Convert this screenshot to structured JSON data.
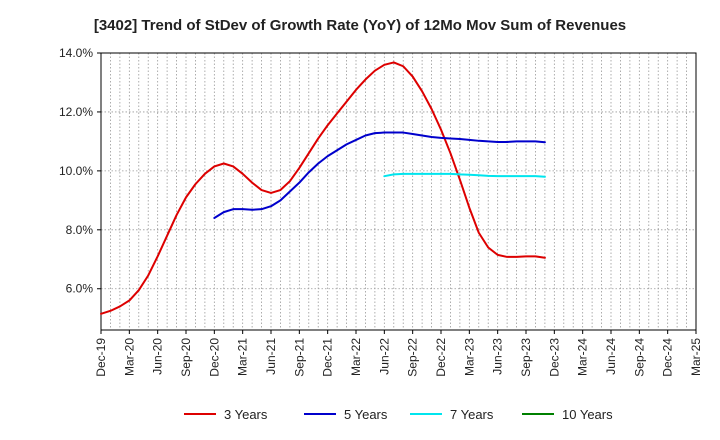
{
  "chart_data": {
    "type": "line",
    "title": "[3402]  Trend of StDev of Growth Rate (YoY) of 12Mo Mov Sum of Revenues",
    "xlabel": "",
    "ylabel": "",
    "x_ticks": [
      "Dec-19",
      "Mar-20",
      "Jun-20",
      "Sep-20",
      "Dec-20",
      "Mar-21",
      "Jun-21",
      "Sep-21",
      "Dec-21",
      "Mar-22",
      "Jun-22",
      "Sep-22",
      "Dec-22",
      "Mar-23",
      "Jun-23",
      "Sep-23",
      "Dec-23",
      "Mar-24",
      "Jun-24",
      "Sep-24",
      "Dec-24",
      "Mar-25"
    ],
    "y_ticks": [
      "6.0%",
      "8.0%",
      "10.0%",
      "12.0%",
      "14.0%"
    ],
    "y_tick_values": [
      6,
      8,
      10,
      12,
      14
    ],
    "ylim": [
      4.6,
      14.0
    ],
    "grid": true,
    "legend_position": "bottom",
    "series": [
      {
        "name": "3 Years",
        "color": "#dd0000",
        "points": [
          [
            0,
            5.15
          ],
          [
            1,
            5.25
          ],
          [
            2,
            5.4
          ],
          [
            3,
            5.6
          ],
          [
            4,
            5.95
          ],
          [
            5,
            6.45
          ],
          [
            6,
            7.1
          ],
          [
            7,
            7.8
          ],
          [
            8,
            8.5
          ],
          [
            9,
            9.1
          ],
          [
            10,
            9.55
          ],
          [
            11,
            9.9
          ],
          [
            12,
            10.15
          ],
          [
            13,
            10.25
          ],
          [
            14,
            10.15
          ],
          [
            15,
            9.9
          ],
          [
            16,
            9.6
          ],
          [
            17,
            9.35
          ],
          [
            18,
            9.25
          ],
          [
            19,
            9.35
          ],
          [
            20,
            9.65
          ],
          [
            21,
            10.1
          ],
          [
            22,
            10.6
          ],
          [
            23,
            11.1
          ],
          [
            24,
            11.55
          ],
          [
            25,
            11.95
          ],
          [
            26,
            12.35
          ],
          [
            27,
            12.75
          ],
          [
            28,
            13.1
          ],
          [
            29,
            13.4
          ],
          [
            30,
            13.6
          ],
          [
            31,
            13.68
          ],
          [
            32,
            13.55
          ],
          [
            33,
            13.2
          ],
          [
            34,
            12.7
          ],
          [
            35,
            12.1
          ],
          [
            36,
            11.4
          ],
          [
            37,
            10.6
          ],
          [
            38,
            9.7
          ],
          [
            39,
            8.75
          ],
          [
            40,
            7.9
          ],
          [
            41,
            7.4
          ],
          [
            42,
            7.15
          ],
          [
            43,
            7.08
          ],
          [
            44,
            7.08
          ],
          [
            45,
            7.1
          ],
          [
            46,
            7.1
          ],
          [
            47,
            7.05
          ]
        ]
      },
      {
        "name": "5 Years",
        "color": "#0000cc",
        "points": [
          [
            12,
            8.4
          ],
          [
            13,
            8.6
          ],
          [
            14,
            8.7
          ],
          [
            15,
            8.7
          ],
          [
            16,
            8.68
          ],
          [
            17,
            8.7
          ],
          [
            18,
            8.8
          ],
          [
            19,
            9.0
          ],
          [
            20,
            9.3
          ],
          [
            21,
            9.6
          ],
          [
            22,
            9.95
          ],
          [
            23,
            10.25
          ],
          [
            24,
            10.5
          ],
          [
            25,
            10.7
          ],
          [
            26,
            10.9
          ],
          [
            27,
            11.05
          ],
          [
            28,
            11.2
          ],
          [
            29,
            11.28
          ],
          [
            30,
            11.3
          ],
          [
            31,
            11.3
          ],
          [
            32,
            11.3
          ],
          [
            33,
            11.25
          ],
          [
            34,
            11.2
          ],
          [
            35,
            11.15
          ],
          [
            36,
            11.12
          ],
          [
            37,
            11.1
          ],
          [
            38,
            11.08
          ],
          [
            39,
            11.05
          ],
          [
            40,
            11.02
          ],
          [
            41,
            11.0
          ],
          [
            42,
            10.98
          ],
          [
            43,
            10.98
          ],
          [
            44,
            11.0
          ],
          [
            45,
            11.0
          ],
          [
            46,
            11.0
          ],
          [
            47,
            10.97
          ]
        ]
      },
      {
        "name": "7 Years",
        "color": "#00e5ee",
        "points": [
          [
            30,
            9.82
          ],
          [
            31,
            9.88
          ],
          [
            32,
            9.9
          ],
          [
            33,
            9.9
          ],
          [
            34,
            9.9
          ],
          [
            35,
            9.9
          ],
          [
            36,
            9.9
          ],
          [
            37,
            9.9
          ],
          [
            38,
            9.88
          ],
          [
            39,
            9.87
          ],
          [
            40,
            9.85
          ],
          [
            41,
            9.83
          ],
          [
            42,
            9.82
          ],
          [
            43,
            9.82
          ],
          [
            44,
            9.82
          ],
          [
            45,
            9.82
          ],
          [
            46,
            9.82
          ],
          [
            47,
            9.8
          ]
        ]
      },
      {
        "name": "10 Years",
        "color": "#008000",
        "points": []
      }
    ]
  }
}
